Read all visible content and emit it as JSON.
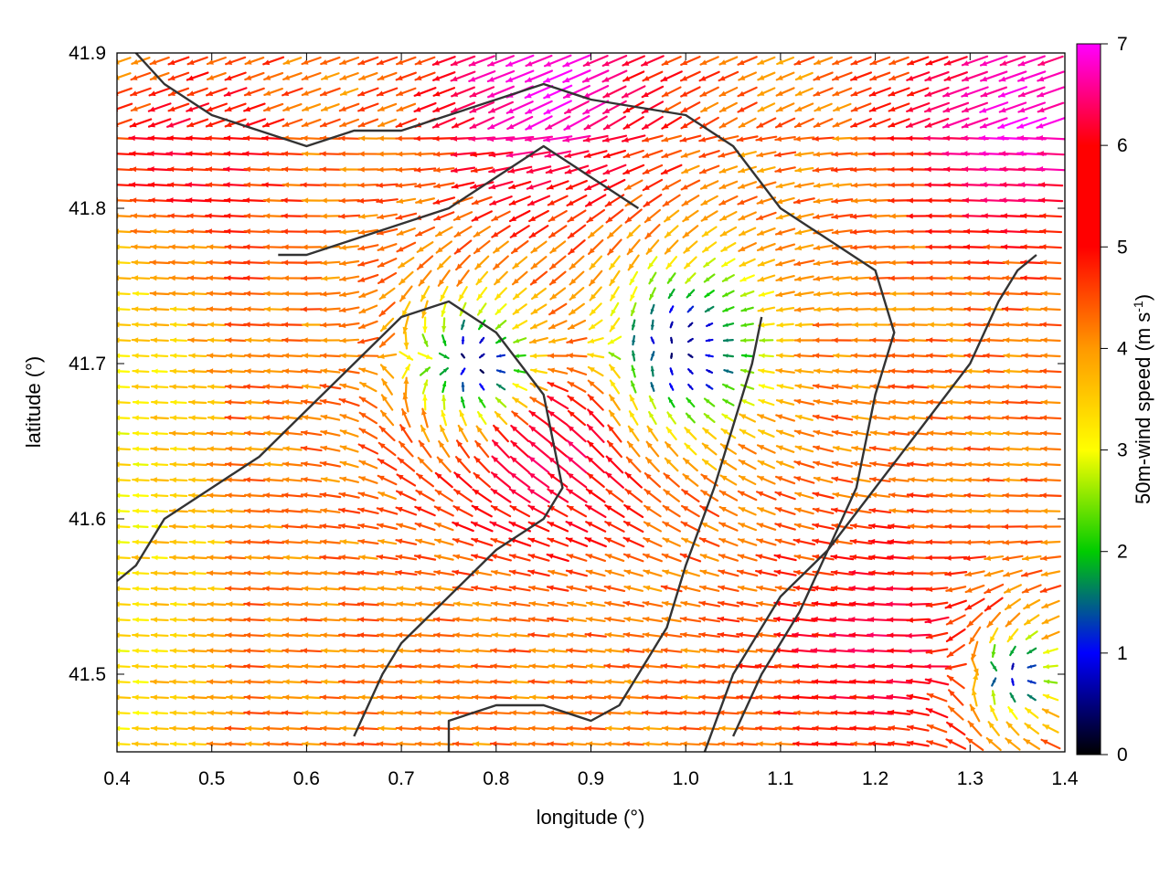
{
  "chart_data": {
    "type": "vector-field",
    "xlabel": "longitude (°)",
    "ylabel": "latitude (°)",
    "xlim": [
      0.4,
      1.4
    ],
    "ylim": [
      41.45,
      41.9
    ],
    "xticks": [
      "0.4",
      "0.5",
      "0.6",
      "0.7",
      "0.8",
      "0.9",
      "1.0",
      "1.1",
      "1.2",
      "1.3",
      "1.4"
    ],
    "yticks": [
      "41.5",
      "41.6",
      "41.7",
      "41.8",
      "41.9"
    ],
    "colorbar": {
      "label_main": "50m-wind speed (m s",
      "label_sup": "-1",
      "label_end": ")",
      "range": [
        0,
        7
      ],
      "ticks": [
        "0",
        "1",
        "2",
        "3",
        "4",
        "5",
        "6",
        "7"
      ],
      "palette": [
        "#000000",
        "#0000ff",
        "#00cc00",
        "#ffff00",
        "#ff9900",
        "#ff0000",
        "#ff00ff"
      ]
    },
    "wind_field": {
      "grid_step_deg": {
        "lon": 0.02,
        "lat": 0.01
      },
      "calm_centers": [
        {
          "lon": 0.78,
          "lat": 41.7,
          "radius_deg": 0.06
        },
        {
          "lon": 1.0,
          "lat": 41.71,
          "radius_deg": 0.08
        },
        {
          "lon": 1.35,
          "lat": 41.5,
          "radius_deg": 0.04
        }
      ],
      "strong_zones": [
        {
          "lon": 0.85,
          "lat": 41.65,
          "speed": 5.8
        },
        {
          "lon": 0.85,
          "lat": 41.88,
          "speed": 6.8
        },
        {
          "lon": 1.35,
          "lat": 41.86,
          "speed": 6.8
        },
        {
          "lon": 0.43,
          "lat": 41.84,
          "speed": 6.3
        },
        {
          "lon": 1.2,
          "lat": 41.52,
          "speed": 5.5
        }
      ],
      "background_speed": 4.2,
      "prevailing_direction": "east-to-west"
    },
    "contours": [
      [
        [
          0.57,
          41.77
        ],
        [
          0.6,
          41.77
        ],
        [
          0.65,
          41.78
        ],
        [
          0.7,
          41.79
        ],
        [
          0.75,
          41.8
        ],
        [
          0.8,
          41.82
        ],
        [
          0.85,
          41.84
        ],
        [
          0.9,
          41.82
        ],
        [
          0.95,
          41.8
        ]
      ],
      [
        [
          0.75,
          41.45
        ],
        [
          0.75,
          41.47
        ],
        [
          0.8,
          41.48
        ],
        [
          0.85,
          41.48
        ],
        [
          0.9,
          41.47
        ],
        [
          0.93,
          41.48
        ],
        [
          0.95,
          41.5
        ],
        [
          0.98,
          41.53
        ],
        [
          1.0,
          41.57
        ],
        [
          1.03,
          41.62
        ],
        [
          1.05,
          41.66
        ],
        [
          1.07,
          41.7
        ],
        [
          1.08,
          41.73
        ]
      ],
      [
        [
          0.4,
          41.56
        ],
        [
          0.42,
          41.57
        ],
        [
          0.45,
          41.6
        ],
        [
          0.5,
          41.62
        ],
        [
          0.55,
          41.64
        ],
        [
          0.6,
          41.67
        ],
        [
          0.65,
          41.7
        ],
        [
          0.7,
          41.73
        ],
        [
          0.75,
          41.74
        ],
        [
          0.8,
          41.72
        ],
        [
          0.85,
          41.68
        ],
        [
          0.87,
          41.62
        ],
        [
          0.85,
          41.6
        ],
        [
          0.8,
          41.58
        ],
        [
          0.75,
          41.55
        ],
        [
          0.7,
          41.52
        ],
        [
          0.68,
          41.5
        ],
        [
          0.65,
          41.46
        ]
      ],
      [
        [
          1.02,
          41.45
        ],
        [
          1.05,
          41.5
        ],
        [
          1.1,
          41.55
        ],
        [
          1.15,
          41.58
        ],
        [
          1.2,
          41.62
        ],
        [
          1.25,
          41.66
        ],
        [
          1.3,
          41.7
        ],
        [
          1.33,
          41.74
        ],
        [
          1.35,
          41.76
        ],
        [
          1.37,
          41.77
        ]
      ],
      [
        [
          0.42,
          41.9
        ],
        [
          0.45,
          41.88
        ],
        [
          0.5,
          41.86
        ],
        [
          0.55,
          41.85
        ],
        [
          0.6,
          41.84
        ],
        [
          0.65,
          41.85
        ],
        [
          0.7,
          41.85
        ],
        [
          0.75,
          41.86
        ],
        [
          0.8,
          41.87
        ],
        [
          0.85,
          41.88
        ],
        [
          0.9,
          41.87
        ],
        [
          1.0,
          41.86
        ],
        [
          1.05,
          41.84
        ],
        [
          1.1,
          41.8
        ],
        [
          1.15,
          41.78
        ],
        [
          1.2,
          41.76
        ],
        [
          1.22,
          41.72
        ],
        [
          1.2,
          41.68
        ],
        [
          1.18,
          41.62
        ],
        [
          1.15,
          41.58
        ],
        [
          1.12,
          41.54
        ],
        [
          1.08,
          41.5
        ],
        [
          1.05,
          41.46
        ]
      ]
    ]
  }
}
